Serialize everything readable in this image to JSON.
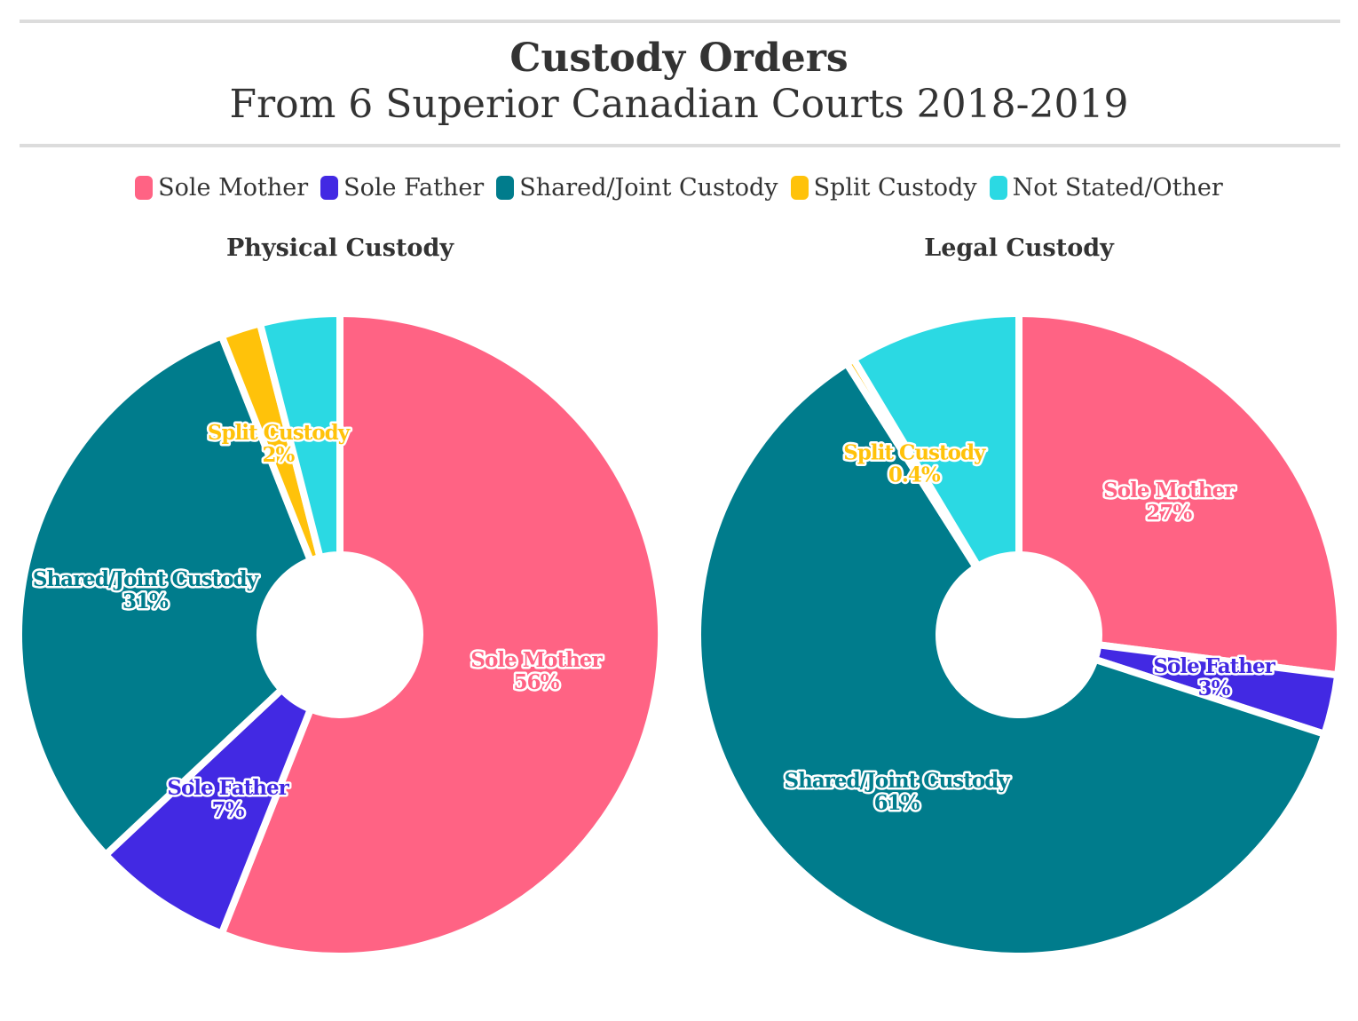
{
  "title": "Custody Orders",
  "subtitle": "From 6 Superior Canadian Courts 2018-2019",
  "legend": [
    {
      "label": "Sole Mother",
      "color": "#FF6384"
    },
    {
      "label": "Sole Father",
      "color": "#4229E3"
    },
    {
      "label": "Shared/Joint Custody",
      "color": "#007C8C"
    },
    {
      "label": "Split Custody",
      "color": "#FFC20A"
    },
    {
      "label": "Not Stated/Other",
      "color": "#2BD9E3"
    }
  ],
  "chart_data": [
    {
      "type": "pie",
      "variant": "doughnut",
      "title": "Physical Custody",
      "categories": [
        "Sole Mother",
        "Sole Father",
        "Shared/Joint Custody",
        "Split Custody",
        "Not Stated/Other"
      ],
      "values": [
        56,
        7,
        31,
        2,
        4
      ],
      "data_labels": [
        "56%",
        "7%",
        "31%",
        "2%",
        ""
      ]
    },
    {
      "type": "pie",
      "variant": "doughnut",
      "title": "Legal Custody",
      "categories": [
        "Sole Mother",
        "Sole Father",
        "Shared/Joint Custody",
        "Split Custody",
        "Not Stated/Other"
      ],
      "values": [
        27,
        3,
        61,
        0.4,
        8.6
      ],
      "data_labels": [
        "27%",
        "3%",
        "61%",
        "0.4%",
        ""
      ]
    }
  ]
}
